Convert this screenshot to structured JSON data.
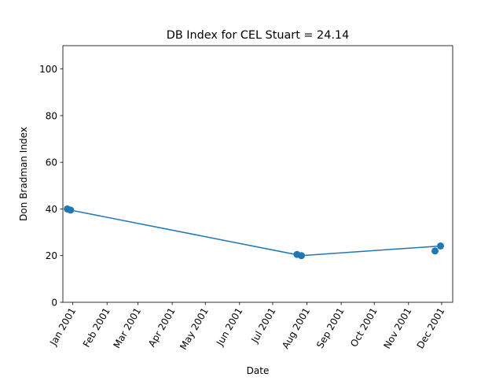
{
  "chart_data": {
    "type": "line",
    "title": "DB Index for CEL Stuart = 24.14",
    "xlabel": "Date",
    "ylabel": "Don Bradman Index",
    "ylim": [
      0,
      110
    ],
    "xlim": [
      "2000-12-23",
      "2001-12-11"
    ],
    "yticks": [
      0,
      20,
      40,
      60,
      80,
      100
    ],
    "xticks": [
      {
        "date": "2001-01-01",
        "label": "Jan 2001"
      },
      {
        "date": "2001-02-01",
        "label": "Feb 2001"
      },
      {
        "date": "2001-03-01",
        "label": "Mar 2001"
      },
      {
        "date": "2001-04-01",
        "label": "Apr 2001"
      },
      {
        "date": "2001-05-01",
        "label": "May 2001"
      },
      {
        "date": "2001-06-01",
        "label": "Jun 2001"
      },
      {
        "date": "2001-07-01",
        "label": "Jul 2001"
      },
      {
        "date": "2001-08-01",
        "label": "Aug 2001"
      },
      {
        "date": "2001-09-01",
        "label": "Sep 2001"
      },
      {
        "date": "2001-10-01",
        "label": "Oct 2001"
      },
      {
        "date": "2001-11-01",
        "label": "Nov 2001"
      },
      {
        "date": "2001-12-01",
        "label": "Dec 2001"
      }
    ],
    "line": {
      "x": [
        "2000-12-30",
        "2001-07-27",
        "2001-11-30"
      ],
      "y": [
        39.5,
        20.0,
        24.14
      ]
    },
    "points": {
      "x": [
        "2000-12-27",
        "2000-12-30",
        "2001-07-23",
        "2001-07-27",
        "2001-11-25",
        "2001-11-30"
      ],
      "y": [
        40.0,
        39.5,
        20.5,
        20.0,
        22.0,
        24.14
      ]
    },
    "grid": false,
    "color": "#1f77b4",
    "axis_color": "#000000"
  }
}
